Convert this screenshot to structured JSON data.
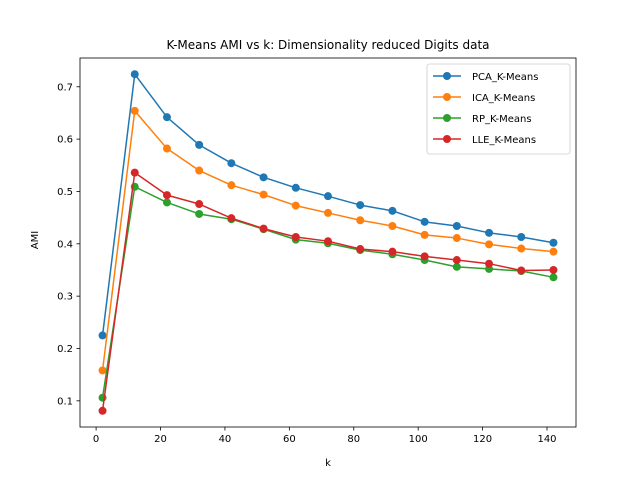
{
  "chart_data": {
    "type": "line",
    "title": "K-Means AMI vs k: Dimensionality reduced Digits data",
    "xlabel": "k",
    "ylabel": "AMI",
    "xlim": [
      -5,
      149
    ],
    "ylim": [
      0.05,
      0.755
    ],
    "xticks": [
      0,
      20,
      40,
      60,
      80,
      100,
      120,
      140
    ],
    "yticks": [
      0.1,
      0.2,
      0.3,
      0.4,
      0.5,
      0.6,
      0.7
    ],
    "x": [
      2,
      12,
      22,
      32,
      42,
      52,
      62,
      72,
      82,
      92,
      102,
      112,
      122,
      132,
      142
    ],
    "legend_position": "top-right",
    "series": [
      {
        "name": "PCA_K-Means",
        "color": "#1f77b4",
        "values": [
          0.225,
          0.724,
          0.642,
          0.589,
          0.554,
          0.527,
          0.507,
          0.491,
          0.474,
          0.463,
          0.442,
          0.434,
          0.421,
          0.413,
          0.402
        ]
      },
      {
        "name": "ICA_K-Means",
        "color": "#ff7f0e",
        "values": [
          0.158,
          0.654,
          0.582,
          0.54,
          0.512,
          0.494,
          0.473,
          0.459,
          0.445,
          0.434,
          0.417,
          0.411,
          0.399,
          0.391,
          0.385
        ]
      },
      {
        "name": "RP_K-Means",
        "color": "#2ca02c",
        "values": [
          0.106,
          0.509,
          0.479,
          0.457,
          0.447,
          0.428,
          0.408,
          0.401,
          0.388,
          0.38,
          0.369,
          0.356,
          0.352,
          0.348,
          0.336
        ]
      },
      {
        "name": "LLE_K-Means",
        "color": "#d62728",
        "values": [
          0.081,
          0.536,
          0.493,
          0.476,
          0.449,
          0.429,
          0.413,
          0.405,
          0.39,
          0.385,
          0.376,
          0.369,
          0.362,
          0.349,
          0.35
        ]
      }
    ]
  }
}
